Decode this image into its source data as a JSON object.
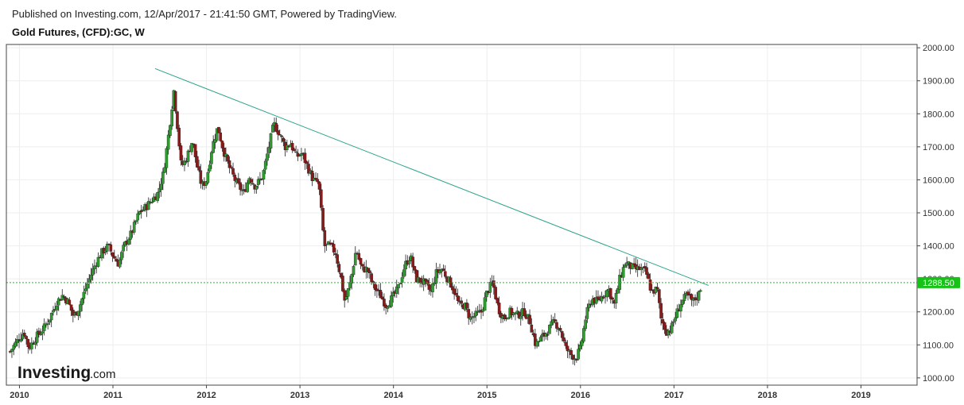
{
  "header": {
    "published": "Published on Investing.com, 12/Apr/2017 - 21:41:50 GMT, Powered by TradingView.",
    "symbol": "Gold Futures, (CFD):GC, W"
  },
  "watermark": {
    "brand": "Investing",
    "suffix": ".com"
  },
  "colors": {
    "up": "#2e9e2e",
    "down": "#8b1a1a",
    "trendline": "#2aa38b",
    "price_line": "#1fbf1f",
    "price_label_bg": "#16c216",
    "grid": "#eeeeee",
    "frame": "#444444"
  },
  "chart_data": {
    "type": "candlestick",
    "title": "Gold Futures, (CFD):GC, W",
    "interval": "W",
    "x_ticks": [
      "2010",
      "2011",
      "2012",
      "2013",
      "2014",
      "2015",
      "2016",
      "2017",
      "2018",
      "2019"
    ],
    "y_ticks": [
      "1000.00",
      "1100.00",
      "1200.00",
      "1300.00",
      "1400.00",
      "1500.00",
      "1600.00",
      "1700.00",
      "1800.00",
      "1900.00",
      "2000.00"
    ],
    "ylim": [
      978,
      2010
    ],
    "xlim": [
      2009.86,
      2019.6
    ],
    "current_price": 1288.5,
    "current_price_label": "1288.50",
    "trendline": {
      "from": {
        "x": 2011.45,
        "y": 1937
      },
      "to": {
        "x": 2017.37,
        "y": 1280
      }
    },
    "anchors": [
      [
        2009.9,
        1080
      ],
      [
        2009.97,
        1110
      ],
      [
        2010.05,
        1140
      ],
      [
        2010.1,
        1090
      ],
      [
        2010.18,
        1125
      ],
      [
        2010.26,
        1150
      ],
      [
        2010.32,
        1180
      ],
      [
        2010.4,
        1230
      ],
      [
        2010.46,
        1250
      ],
      [
        2010.52,
        1230
      ],
      [
        2010.58,
        1185
      ],
      [
        2010.64,
        1215
      ],
      [
        2010.7,
        1265
      ],
      [
        2010.76,
        1310
      ],
      [
        2010.82,
        1350
      ],
      [
        2010.88,
        1380
      ],
      [
        2010.95,
        1400
      ],
      [
        2011.0,
        1370
      ],
      [
        2011.06,
        1345
      ],
      [
        2011.12,
        1400
      ],
      [
        2011.2,
        1440
      ],
      [
        2011.28,
        1500
      ],
      [
        2011.36,
        1520
      ],
      [
        2011.42,
        1540
      ],
      [
        2011.48,
        1560
      ],
      [
        2011.54,
        1620
      ],
      [
        2011.6,
        1750
      ],
      [
        2011.65,
        1870
      ],
      [
        2011.68,
        1790
      ],
      [
        2011.73,
        1640
      ],
      [
        2011.78,
        1660
      ],
      [
        2011.85,
        1720
      ],
      [
        2011.9,
        1640
      ],
      [
        2011.95,
        1580
      ],
      [
        2012.0,
        1600
      ],
      [
        2012.06,
        1700
      ],
      [
        2012.12,
        1760
      ],
      [
        2012.18,
        1690
      ],
      [
        2012.24,
        1640
      ],
      [
        2012.32,
        1590
      ],
      [
        2012.4,
        1560
      ],
      [
        2012.46,
        1610
      ],
      [
        2012.52,
        1580
      ],
      [
        2012.6,
        1610
      ],
      [
        2012.66,
        1690
      ],
      [
        2012.72,
        1770
      ],
      [
        2012.78,
        1740
      ],
      [
        2012.84,
        1700
      ],
      [
        2012.9,
        1710
      ],
      [
        2012.96,
        1670
      ],
      [
        2013.02,
        1680
      ],
      [
        2013.08,
        1640
      ],
      [
        2013.14,
        1600
      ],
      [
        2013.2,
        1590
      ],
      [
        2013.26,
        1400
      ],
      [
        2013.32,
        1400
      ],
      [
        2013.38,
        1380
      ],
      [
        2013.44,
        1300
      ],
      [
        2013.48,
        1230
      ],
      [
        2013.54,
        1290
      ],
      [
        2013.6,
        1390
      ],
      [
        2013.66,
        1330
      ],
      [
        2013.72,
        1330
      ],
      [
        2013.78,
        1280
      ],
      [
        2013.86,
        1250
      ],
      [
        2013.92,
        1220
      ],
      [
        2013.98,
        1240
      ],
      [
        2014.05,
        1270
      ],
      [
        2014.12,
        1340
      ],
      [
        2014.18,
        1370
      ],
      [
        2014.24,
        1300
      ],
      [
        2014.32,
        1290
      ],
      [
        2014.4,
        1260
      ],
      [
        2014.46,
        1320
      ],
      [
        2014.52,
        1330
      ],
      [
        2014.58,
        1300
      ],
      [
        2014.64,
        1270
      ],
      [
        2014.7,
        1220
      ],
      [
        2014.76,
        1220
      ],
      [
        2014.82,
        1180
      ],
      [
        2014.88,
        1190
      ],
      [
        2014.94,
        1200
      ],
      [
        2015.0,
        1260
      ],
      [
        2015.06,
        1290
      ],
      [
        2015.12,
        1210
      ],
      [
        2015.18,
        1180
      ],
      [
        2015.24,
        1200
      ],
      [
        2015.32,
        1190
      ],
      [
        2015.4,
        1200
      ],
      [
        2015.46,
        1170
      ],
      [
        2015.52,
        1100
      ],
      [
        2015.58,
        1120
      ],
      [
        2015.64,
        1140
      ],
      [
        2015.72,
        1170
      ],
      [
        2015.78,
        1150
      ],
      [
        2015.84,
        1090
      ],
      [
        2015.9,
        1070
      ],
      [
        2015.95,
        1060
      ],
      [
        2016.0,
        1090
      ],
      [
        2016.06,
        1190
      ],
      [
        2016.12,
        1240
      ],
      [
        2016.18,
        1230
      ],
      [
        2016.24,
        1250
      ],
      [
        2016.3,
        1270
      ],
      [
        2016.36,
        1220
      ],
      [
        2016.42,
        1300
      ],
      [
        2016.48,
        1350
      ],
      [
        2016.52,
        1340
      ],
      [
        2016.58,
        1330
      ],
      [
        2016.64,
        1330
      ],
      [
        2016.7,
        1320
      ],
      [
        2016.76,
        1260
      ],
      [
        2016.82,
        1270
      ],
      [
        2016.86,
        1180
      ],
      [
        2016.92,
        1140
      ],
      [
        2016.97,
        1150
      ],
      [
        2017.02,
        1190
      ],
      [
        2017.08,
        1230
      ],
      [
        2017.14,
        1250
      ],
      [
        2017.2,
        1230
      ],
      [
        2017.26,
        1250
      ],
      [
        2017.3,
        1288
      ]
    ]
  }
}
